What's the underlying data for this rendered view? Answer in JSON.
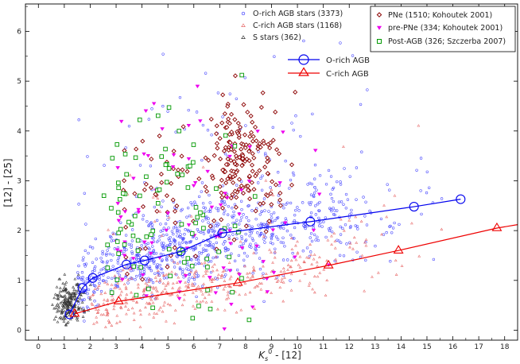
{
  "chart_data": {
    "type": "scatter",
    "xlabel_main": "K",
    "xlabel_sub": "s",
    "xlabel_sup": "0",
    "xlabel_rest": " - [12]",
    "ylabel": "[12] - [25]",
    "xlim": [
      -0.5,
      18.5
    ],
    "ylim": [
      -0.2,
      6.55
    ],
    "xticks": [
      0,
      1,
      2,
      3,
      4,
      5,
      6,
      7,
      8,
      9,
      10,
      11,
      12,
      13,
      14,
      15,
      16,
      17,
      18
    ],
    "yticks": [
      0,
      1,
      2,
      3,
      4,
      5,
      6
    ],
    "legend_left": [
      {
        "label": "O-rich AGB stars (3373)",
        "color": "#3333ff",
        "marker": "circle"
      },
      {
        "label": "C-rich AGB stars (1168)",
        "color": "#e86a6a",
        "marker": "triangle"
      },
      {
        "label": "S stars (362)",
        "color": "#333333",
        "marker": "triangle"
      }
    ],
    "legend_right": [
      {
        "label": "PNe (1510; Kohoutek 2001)",
        "color": "#8b0000",
        "marker": "diamond"
      },
      {
        "label": "pre-PNe (334; Kohoutek 2001)",
        "color": "#ee00ee",
        "marker": "down-triangle"
      },
      {
        "label": "Post-AGB (326; Szczerba 2007)",
        "color": "#009900",
        "marker": "square"
      }
    ],
    "legend_tracks": [
      {
        "label": "O-rich AGB",
        "color": "#0000ee",
        "marker": "circle"
      },
      {
        "label": "C-rich AGB",
        "color": "#ee0000",
        "marker": "triangle"
      }
    ],
    "series": [
      {
        "name": "O-rich AGB",
        "color": "#0000ee",
        "marker": "circle",
        "x": [
          1.2,
          1.7,
          2.1,
          3.4,
          4.1,
          5.5,
          7.1,
          10.5,
          14.5,
          16.3
        ],
        "y": [
          0.32,
          0.85,
          1.05,
          1.32,
          1.4,
          1.58,
          1.95,
          2.18,
          2.48,
          2.63
        ]
      },
      {
        "name": "C-rich AGB",
        "color": "#ee0000",
        "marker": "triangle",
        "x": [
          1.4,
          3.1,
          7.7,
          11.2,
          13.9,
          17.7,
          18.5
        ],
        "y": [
          0.33,
          0.58,
          0.95,
          1.3,
          1.6,
          2.05,
          2.12
        ]
      }
    ],
    "clouds": [
      {
        "name": "O-rich AGB stars",
        "color": "#4444ff",
        "marker": "circle",
        "count": 950,
        "clusters": [
          {
            "frac": 0.35,
            "xmin": 1.5,
            "xmax": 7.5,
            "trend": "o",
            "spread": 0.32
          },
          {
            "frac": 0.45,
            "xmin": 4.0,
            "xmax": 14.0,
            "trend": "o",
            "spread": 0.45
          },
          {
            "frac": 0.2,
            "xmin": 6.0,
            "xmax": 17.5,
            "trend": "o",
            "spread": 0.55
          }
        ]
      },
      {
        "name": "C-rich AGB stars",
        "color": "#e86a6a",
        "marker": "triangle",
        "count": 420,
        "clusters": [
          {
            "frac": 0.6,
            "xmin": 2.0,
            "xmax": 9.0,
            "trend": "c",
            "spread": 0.28
          },
          {
            "frac": 0.4,
            "xmin": 6.0,
            "xmax": 16.0,
            "trend": "c",
            "spread": 0.35
          }
        ]
      },
      {
        "name": "S stars",
        "color": "#333333",
        "marker": "triangle",
        "count": 220,
        "clusters": [
          {
            "frac": 1.0,
            "xmin": 0.6,
            "xmax": 2.2,
            "trend": "s",
            "spread": 0.22
          }
        ]
      },
      {
        "name": "PNe",
        "color": "#8b0000",
        "marker": "diamond",
        "count": 230,
        "clusters": [
          {
            "frac": 0.7,
            "xmin": 7.0,
            "xmax": 9.2,
            "trend": "pne",
            "spread": 0.55
          },
          {
            "frac": 0.3,
            "xmin": 3.0,
            "xmax": 11.0,
            "trend": "pne2",
            "spread": 0.9
          }
        ]
      },
      {
        "name": "pre-PNe",
        "color": "#ee00ee",
        "marker": "down-triangle",
        "count": 90,
        "clusters": [
          {
            "frac": 1.0,
            "xmin": 3.0,
            "xmax": 12.0,
            "trend": "pre",
            "spread": 1.0
          }
        ]
      },
      {
        "name": "Post-AGB",
        "color": "#009900",
        "marker": "square",
        "count": 100,
        "clusters": [
          {
            "frac": 1.0,
            "xmin": 2.5,
            "xmax": 9.5,
            "trend": "post",
            "spread": 1.1
          }
        ]
      }
    ]
  }
}
